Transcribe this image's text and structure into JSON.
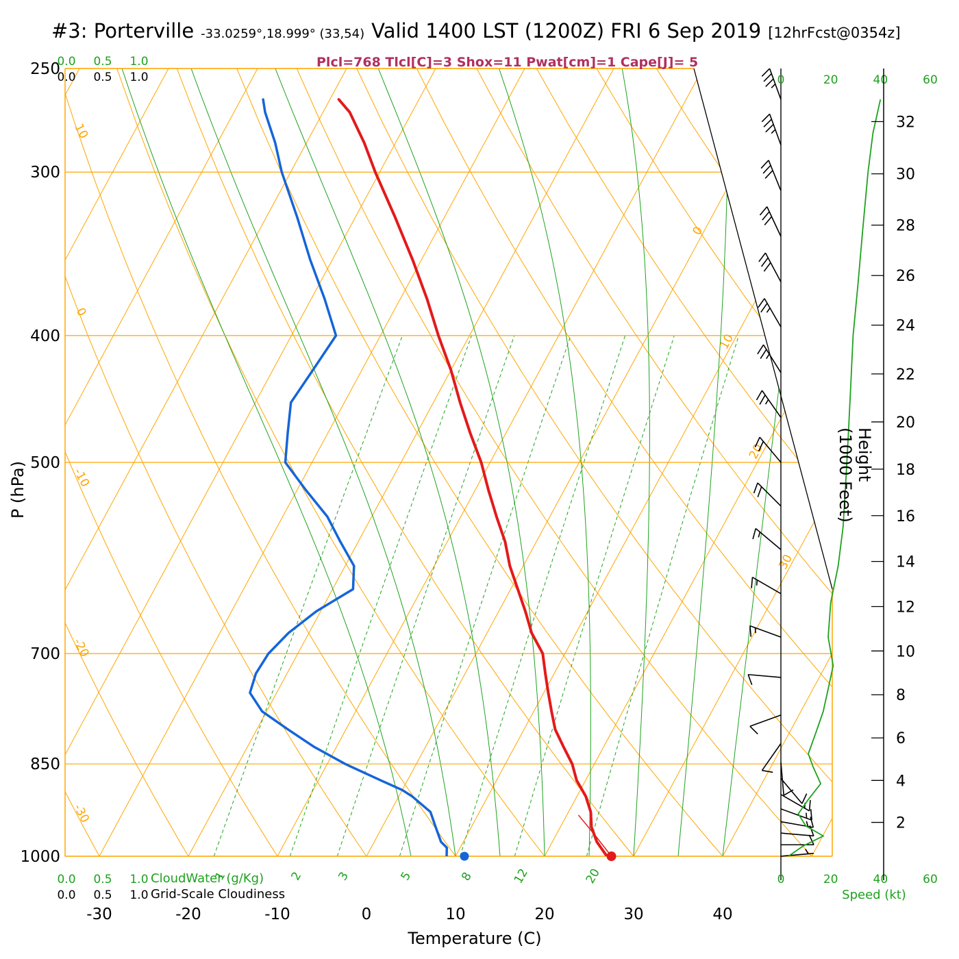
{
  "title": {
    "station": "#3: Porterville",
    "coords": "-33.0259°,18.999° (33,54)",
    "valid": "Valid 1400 LST (1200Z) FRI 6 Sep 2019",
    "fcst": "[12hrFcst@0354z]"
  },
  "indices_line": "Plcl=768 Tlcl[C]=3 Shox=11 Pwat[cm]=1 Cape[J]= 5",
  "axes": {
    "pressure_label": "P (hPa)",
    "pressure_ticks": [
      250,
      300,
      400,
      500,
      700,
      850,
      1000
    ],
    "temp_label": "Temperature (C)",
    "temp_ticks": [
      -30,
      -20,
      -10,
      0,
      10,
      20,
      30,
      40
    ],
    "height_label": "Height (1000 Feet)",
    "height_ticks": [
      2,
      4,
      6,
      8,
      10,
      12,
      14,
      16,
      18,
      20,
      22,
      24,
      26,
      28,
      30,
      32
    ],
    "speed_label": "Speed (kt)",
    "speed_ticks": [
      0,
      20,
      40,
      60
    ],
    "cloudwater_label": "CloudWater (g/Kg)",
    "cloudwater_ticks": [
      "0.0",
      "0.5",
      "1.0"
    ],
    "cloudiness_label": "Grid-Scale Cloudiness",
    "cloudiness_ticks": [
      "0.0",
      "0.5",
      "1.0"
    ]
  },
  "grid": {
    "isotherms_c": {
      "start": -90,
      "end": 50,
      "step": 10
    },
    "dry_adiabats_c": {
      "start": -40,
      "end": 180,
      "step": 10
    },
    "moist_adiabats_c": [
      5,
      10,
      15,
      20,
      25,
      30,
      35,
      40
    ],
    "mixing_ratio_g_kg": [
      1,
      2,
      3,
      5,
      8,
      12,
      20
    ],
    "isotherm_inline_labels": [
      0,
      10,
      20,
      30
    ],
    "dry_adiabat_edge_labels": [
      10,
      0,
      -10,
      -20,
      -30
    ]
  },
  "colors": {
    "grid_orange": "#FFA500",
    "green": "#1ea11e",
    "temperature": "#e31a1c",
    "dewpoint": "#1565d8",
    "indices": "#b03060",
    "black": "#000000"
  },
  "chart_data": {
    "type": "line",
    "variant": "skew-t log-p sounding",
    "pressure_range_hpa": [
      250,
      1000
    ],
    "temp_axis_c": [
      -30,
      40
    ],
    "title": "#3: Porterville Valid 1400 LST (1200Z) FRI 6 Sep 2019",
    "xlabel": "Temperature (C)",
    "ylabel": "P (hPa)",
    "temperature_profile": [
      [
        1000,
        27
      ],
      [
        975,
        25
      ],
      [
        950,
        23.5
      ],
      [
        925,
        22.5
      ],
      [
        900,
        21
      ],
      [
        875,
        19
      ],
      [
        850,
        17.5
      ],
      [
        825,
        15.5
      ],
      [
        800,
        13.5
      ],
      [
        775,
        12
      ],
      [
        750,
        10.5
      ],
      [
        725,
        9
      ],
      [
        700,
        7.5
      ],
      [
        675,
        5
      ],
      [
        650,
        3
      ],
      [
        625,
        0.8
      ],
      [
        600,
        -1.5
      ],
      [
        575,
        -3.5
      ],
      [
        550,
        -6
      ],
      [
        525,
        -8.5
      ],
      [
        500,
        -11
      ],
      [
        475,
        -14
      ],
      [
        450,
        -17
      ],
      [
        425,
        -20
      ],
      [
        400,
        -23.5
      ],
      [
        375,
        -27
      ],
      [
        350,
        -31
      ],
      [
        325,
        -35.5
      ],
      [
        300,
        -40.5
      ],
      [
        285,
        -43.5
      ],
      [
        270,
        -47
      ],
      [
        264,
        -49
      ]
    ],
    "dewpoint_profile": [
      [
        1000,
        9
      ],
      [
        985,
        8.5
      ],
      [
        975,
        7.5
      ],
      [
        950,
        6
      ],
      [
        925,
        4.5
      ],
      [
        900,
        1.5
      ],
      [
        890,
        0
      ],
      [
        875,
        -3
      ],
      [
        850,
        -8
      ],
      [
        825,
        -12.5
      ],
      [
        800,
        -16.5
      ],
      [
        775,
        -20.5
      ],
      [
        750,
        -23
      ],
      [
        725,
        -23.5
      ],
      [
        700,
        -23.3
      ],
      [
        675,
        -22.3
      ],
      [
        650,
        -20.5
      ],
      [
        625,
        -17.7
      ],
      [
        600,
        -19
      ],
      [
        575,
        -22
      ],
      [
        550,
        -25
      ],
      [
        525,
        -29
      ],
      [
        500,
        -33
      ],
      [
        475,
        -34.5
      ],
      [
        450,
        -36
      ],
      [
        425,
        -35.5
      ],
      [
        400,
        -35
      ],
      [
        375,
        -38.5
      ],
      [
        350,
        -42.5
      ],
      [
        325,
        -46.5
      ],
      [
        300,
        -51
      ],
      [
        285,
        -53.5
      ],
      [
        270,
        -56.5
      ],
      [
        264,
        -57.5
      ]
    ],
    "parcel_path": [
      [
        1000,
        27.5
      ],
      [
        965,
        24.5
      ],
      [
        930,
        21.3
      ]
    ],
    "surface_dots": {
      "pressure_hpa": 1000,
      "temperature_c": 27.5,
      "dewpoint_c": 11
    },
    "winds": [
      [
        264,
        340,
        35
      ],
      [
        286,
        340,
        35
      ],
      [
        310,
        338,
        30
      ],
      [
        336,
        335,
        30
      ],
      [
        364,
        332,
        30
      ],
      [
        394,
        330,
        25
      ],
      [
        427,
        328,
        25
      ],
      [
        462,
        325,
        25
      ],
      [
        500,
        320,
        20
      ],
      [
        540,
        315,
        20
      ],
      [
        583,
        310,
        15
      ],
      [
        630,
        300,
        15
      ],
      [
        680,
        290,
        15
      ],
      [
        730,
        275,
        10
      ],
      [
        780,
        250,
        10
      ],
      [
        820,
        215,
        10
      ],
      [
        848,
        175,
        10
      ],
      [
        872,
        140,
        10
      ],
      [
        897,
        120,
        15
      ],
      [
        920,
        110,
        15
      ],
      [
        941,
        100,
        15
      ],
      [
        960,
        95,
        12
      ],
      [
        980,
        90,
        10
      ],
      [
        1000,
        85,
        6
      ]
    ],
    "speed_profile_kt": [
      [
        264,
        40
      ],
      [
        280,
        37
      ],
      [
        300,
        35
      ],
      [
        330,
        33
      ],
      [
        365,
        31
      ],
      [
        400,
        29
      ],
      [
        440,
        28
      ],
      [
        480,
        27
      ],
      [
        520,
        26
      ],
      [
        560,
        25
      ],
      [
        600,
        23
      ],
      [
        640,
        20
      ],
      [
        680,
        19
      ],
      [
        715,
        21
      ],
      [
        745,
        19
      ],
      [
        775,
        17
      ],
      [
        805,
        14
      ],
      [
        835,
        11
      ],
      [
        855,
        13
      ],
      [
        880,
        16
      ],
      [
        905,
        11
      ],
      [
        928,
        7
      ],
      [
        948,
        10
      ],
      [
        965,
        17
      ],
      [
        982,
        9
      ],
      [
        1000,
        3
      ]
    ]
  }
}
